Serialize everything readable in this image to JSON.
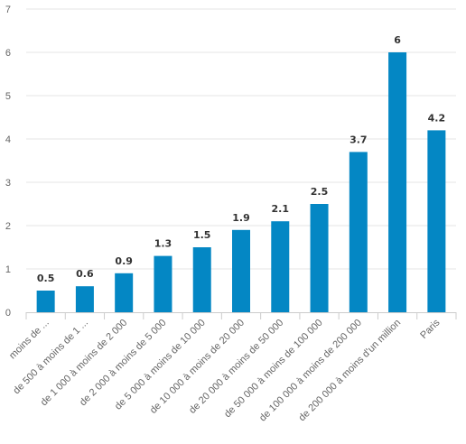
{
  "chart_data": {
    "type": "bar",
    "title": "",
    "xlabel": "",
    "ylabel": "",
    "ylim": [
      0,
      7
    ],
    "y_ticks": [
      0,
      1,
      2,
      3,
      4,
      5,
      6,
      7
    ],
    "grid": true,
    "legend": "none",
    "bar_color": "#0487c4",
    "categories": [
      "moins de ...",
      "de 500 à moins de 1 ...",
      "de 1 000 à moins de 2 000",
      "de 2 000 à moins de 5 000",
      "de 5 000 à moins de 10 000",
      "de 10 000 à moins de 20 000",
      "de 20 000 à moins de 50 000",
      "de 50 000 à moins de 100 000",
      "de 100 000 à moins de 200 000",
      "de 200 000 à moins d'un million",
      "Paris"
    ],
    "values": [
      0.5,
      0.6,
      0.9,
      1.3,
      1.5,
      1.9,
      2.1,
      2.5,
      3.7,
      6,
      4.2
    ],
    "data_labels": [
      "0.5",
      "0.6",
      "0.9",
      "1.3",
      "1.5",
      "1.9",
      "2.1",
      "2.5",
      "3.7",
      "6",
      "4.2"
    ]
  }
}
